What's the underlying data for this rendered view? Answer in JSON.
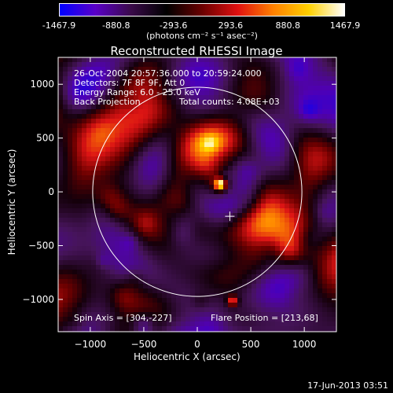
{
  "colorbar": {
    "ticks": [
      "-1467.9",
      "-880.8",
      "-293.6",
      "293.6",
      "880.8",
      "1467.9"
    ],
    "tick_values": [
      -1467.9,
      -880.8,
      -293.6,
      293.6,
      880.8,
      1467.9
    ],
    "unit_label": "(photons cm⁻² s⁻¹ asec⁻²)",
    "colors": [
      "#0000ff",
      "#5a00c8",
      "#3a0a4a",
      "#000000",
      "#6a0000",
      "#e01010",
      "#ff8000",
      "#ffd000",
      "#ffffff"
    ]
  },
  "chart_data": {
    "type": "heatmap",
    "title": "Reconstructed RHESSI Image",
    "xlabel": "Heliocentric X (arcsec)",
    "ylabel": "Heliocentric Y (arcsec)",
    "xlim": [
      -1300,
      1300
    ],
    "ylim": [
      -1300,
      1250
    ],
    "xticks": [
      -1000,
      -500,
      0,
      500,
      1000
    ],
    "yticks": [
      -1000,
      -500,
      0,
      500,
      1000
    ],
    "zlim": [
      -1467.9,
      1467.9
    ],
    "solar_limb": {
      "center": [
        0,
        0
      ],
      "radius_arcsec": 975
    },
    "spin_axis": [
      304,
      -227
    ],
    "flare_position": [
      213,
      68
    ],
    "peak_sources": [
      {
        "x": 213,
        "y": 68,
        "value": 1467.9
      },
      {
        "x": 330,
        "y": -1015,
        "value": 880.8
      }
    ]
  },
  "annotations": {
    "time_range": "26-Oct-2004 20:57:36.000 to 20:59:24.000",
    "detectors": "Detectors: 7F 8F 9F, Att 0",
    "energy": "Energy Range: 6.0 - 25.0 keV",
    "method": "Back Projection",
    "counts": "Total counts: 4.08E+03",
    "spin_axis_text": "Spin Axis = [304,-227]",
    "flare_position_text": "Flare Position = [213,68]"
  },
  "timestamp": "17-Jun-2013 03:51"
}
